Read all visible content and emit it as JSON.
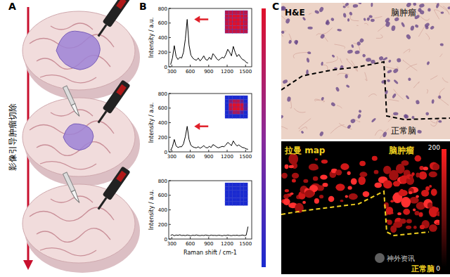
{
  "panels": {
    "a": {
      "label": "A",
      "caption": "影像引导肿瘤切除"
    },
    "b": {
      "label": "B"
    },
    "c": {
      "label": "C",
      "he_title": "H&E",
      "he_tumor": "脑肿瘤",
      "he_normal": "正常脑",
      "map_title": "拉曼 map",
      "map_tumor": "脑肿瘤",
      "map_normal": "正常脑",
      "colorbar_range": [
        0,
        200
      ],
      "colorbar_ticks": [
        0,
        200
      ],
      "watermark": "神外资讯"
    }
  },
  "chart_data": [
    {
      "type": "line",
      "y_label": "Intensity / a.u.",
      "color": "#000000",
      "xlim": [
        250,
        1600
      ],
      "ylim": [
        0,
        800
      ],
      "xticks": [
        300,
        600,
        900,
        1200,
        1500
      ],
      "yticks": [
        0,
        200,
        400,
        600,
        800
      ],
      "x": [
        280,
        310,
        340,
        370,
        400,
        430,
        460,
        490,
        520,
        550,
        580,
        610,
        640,
        670,
        700,
        730,
        760,
        790,
        820,
        850,
        880,
        910,
        940,
        970,
        1000,
        1030,
        1060,
        1090,
        1120,
        1150,
        1180,
        1210,
        1240,
        1270,
        1300,
        1330,
        1360,
        1390,
        1420,
        1450,
        1480,
        1510,
        1540
      ],
      "values": [
        30,
        120,
        290,
        140,
        100,
        130,
        120,
        200,
        380,
        650,
        300,
        160,
        120,
        100,
        90,
        120,
        80,
        110,
        150,
        100,
        90,
        130,
        100,
        180,
        150,
        110,
        90,
        110,
        130,
        120,
        170,
        240,
        200,
        150,
        280,
        200,
        140,
        170,
        130,
        100,
        90,
        60,
        50
      ],
      "inset_range": [
        0,
        1
      ],
      "inset_cells": [
        [
          0.8,
          0.85,
          0.85,
          0.85,
          0.85,
          0.8
        ],
        [
          0.85,
          0.95,
          1,
          1,
          0.95,
          0.85
        ],
        [
          0.85,
          1,
          1,
          1,
          1,
          0.85
        ],
        [
          0.85,
          1,
          1,
          1,
          1,
          0.85
        ],
        [
          0.85,
          0.95,
          1,
          1,
          0.95,
          0.85
        ],
        [
          0.8,
          0.85,
          0.85,
          0.85,
          0.85,
          0.8
        ]
      ]
    },
    {
      "type": "line",
      "y_label": "Intensity / a.u.",
      "color": "#000000",
      "xlim": [
        250,
        1600
      ],
      "ylim": [
        0,
        800
      ],
      "xticks": [
        300,
        600,
        900,
        1200,
        1500
      ],
      "yticks": [
        0,
        200,
        400,
        600,
        800
      ],
      "x": [
        280,
        310,
        340,
        370,
        400,
        430,
        460,
        490,
        520,
        550,
        580,
        610,
        640,
        670,
        700,
        730,
        760,
        790,
        820,
        850,
        880,
        910,
        940,
        970,
        1000,
        1030,
        1060,
        1090,
        1120,
        1150,
        1180,
        1210,
        1240,
        1270,
        1300,
        1330,
        1360,
        1390,
        1420,
        1450,
        1480,
        1510,
        1540
      ],
      "values": [
        20,
        70,
        170,
        80,
        60,
        70,
        70,
        110,
        210,
        350,
        170,
        90,
        70,
        60,
        55,
        70,
        50,
        65,
        85,
        60,
        55,
        75,
        60,
        100,
        85,
        65,
        55,
        65,
        75,
        70,
        95,
        130,
        110,
        85,
        150,
        110,
        80,
        95,
        75,
        60,
        55,
        40,
        35
      ],
      "inset_range": [
        0,
        1
      ],
      "inset_cells": [
        [
          0,
          0,
          0,
          0,
          0,
          0
        ],
        [
          0,
          0.5,
          0.8,
          0.8,
          0.4,
          0
        ],
        [
          0,
          0.9,
          1,
          1,
          0.9,
          0.2
        ],
        [
          0,
          0.8,
          1,
          1,
          0.9,
          0.3
        ],
        [
          0,
          0.3,
          0.7,
          0.7,
          0.3,
          0
        ],
        [
          0,
          0,
          0,
          0,
          0,
          0
        ]
      ]
    },
    {
      "type": "line",
      "y_label": "Intensity / a.u.",
      "x_label": "Raman shift / cm-1",
      "color": "#000000",
      "xlim": [
        250,
        1600
      ],
      "ylim": [
        0,
        800
      ],
      "xticks": [
        300,
        600,
        900,
        1200,
        1500
      ],
      "yticks": [
        0,
        200,
        400,
        600,
        800
      ],
      "x": [
        280,
        310,
        340,
        370,
        400,
        430,
        460,
        490,
        520,
        550,
        580,
        610,
        640,
        670,
        700,
        730,
        760,
        790,
        820,
        850,
        880,
        910,
        940,
        970,
        1000,
        1030,
        1060,
        1090,
        1120,
        1150,
        1180,
        1210,
        1240,
        1270,
        1300,
        1330,
        1360,
        1390,
        1420,
        1450,
        1480,
        1510,
        1540
      ],
      "values": [
        50,
        60,
        45,
        55,
        50,
        58,
        48,
        52,
        47,
        55,
        50,
        45,
        53,
        49,
        56,
        50,
        47,
        52,
        48,
        55,
        50,
        46,
        54,
        49,
        51,
        47,
        53,
        50,
        45,
        52,
        48,
        55,
        50,
        46,
        52,
        49,
        53,
        47,
        50,
        55,
        48,
        52,
        170
      ],
      "inset_range": [
        0,
        1
      ],
      "inset_cells": [
        [
          0,
          0,
          0,
          0,
          0,
          0
        ],
        [
          0,
          0,
          0,
          0,
          0,
          0
        ],
        [
          0,
          0,
          0,
          0,
          0,
          0
        ],
        [
          0,
          0,
          0,
          0,
          0,
          0
        ],
        [
          0,
          0,
          0,
          0,
          0,
          0
        ],
        [
          0,
          0,
          0,
          0,
          0,
          0
        ]
      ]
    }
  ]
}
